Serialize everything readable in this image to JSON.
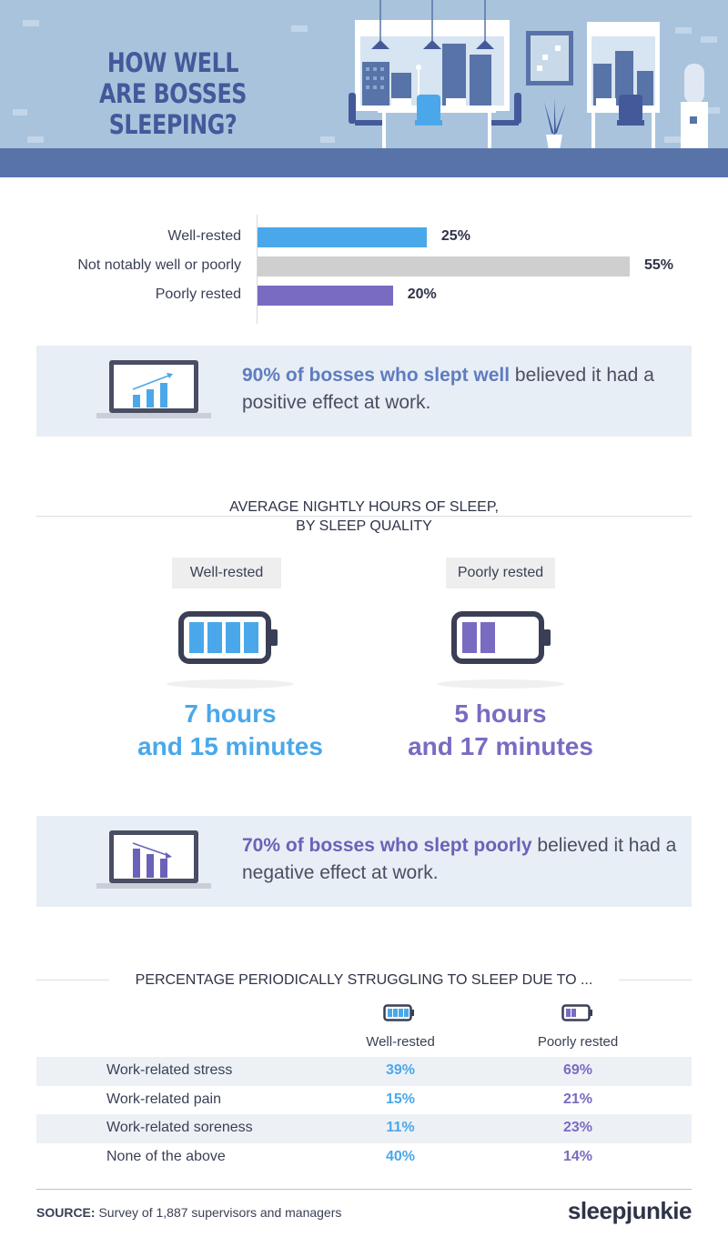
{
  "header": {
    "title_line1": "HOW WELL",
    "title_line2": "ARE BOSSES SLEEPING?"
  },
  "colors": {
    "blue": "#4aa8ea",
    "gray": "#cfcfcf",
    "purple": "#7a6bc2",
    "header_bg": "#a9c3dd",
    "floor": "#5873a8"
  },
  "chart_data": {
    "type": "bar",
    "orientation": "horizontal",
    "categories": [
      "Well-rested",
      "Not notably well or poorly",
      "Poorly rested"
    ],
    "values": [
      25,
      55,
      20
    ],
    "value_labels": [
      "25%",
      "55%",
      "20%"
    ],
    "colors": [
      "#4aa8ea",
      "#cfcfcf",
      "#7a6bc2"
    ]
  },
  "callout1": {
    "highlight": "90% of bosses who slept well",
    "rest": " believed it had a positive effect at work.",
    "icon": "laptop-chart-up-icon"
  },
  "sleep_hours": {
    "title_line1": "AVERAGE NIGHTLY HOURS OF SLEEP,",
    "title_line2": "BY SLEEP QUALITY",
    "well": {
      "label": "Well-rested",
      "line1": "7 hours",
      "line2": "and 15 minutes",
      "battery_level": 4
    },
    "poor": {
      "label": "Poorly rested",
      "line1": "5 hours",
      "line2": "and 17 minutes",
      "battery_level": 2
    }
  },
  "callout2": {
    "highlight": "70% of bosses who slept poorly",
    "rest": " believed it had a negative effect at work.",
    "icon": "laptop-chart-down-icon"
  },
  "struggle": {
    "title": "PERCENTAGE PERIODICALLY STRUGGLING TO SLEEP DUE TO ...",
    "col1": "Well-rested",
    "col2": "Poorly rested",
    "rows": [
      {
        "name": "Work-related stress",
        "well": "39%",
        "poor": "69%"
      },
      {
        "name": "Work-related pain",
        "well": "15%",
        "poor": "21%"
      },
      {
        "name": "Work-related soreness",
        "well": "11%",
        "poor": "23%"
      },
      {
        "name": "None of the above",
        "well": "40%",
        "poor": "14%"
      }
    ]
  },
  "footer": {
    "source_label": "SOURCE:",
    "source_text": " Survey of 1,887 supervisors and managers",
    "brand": "sleepjunkie"
  }
}
